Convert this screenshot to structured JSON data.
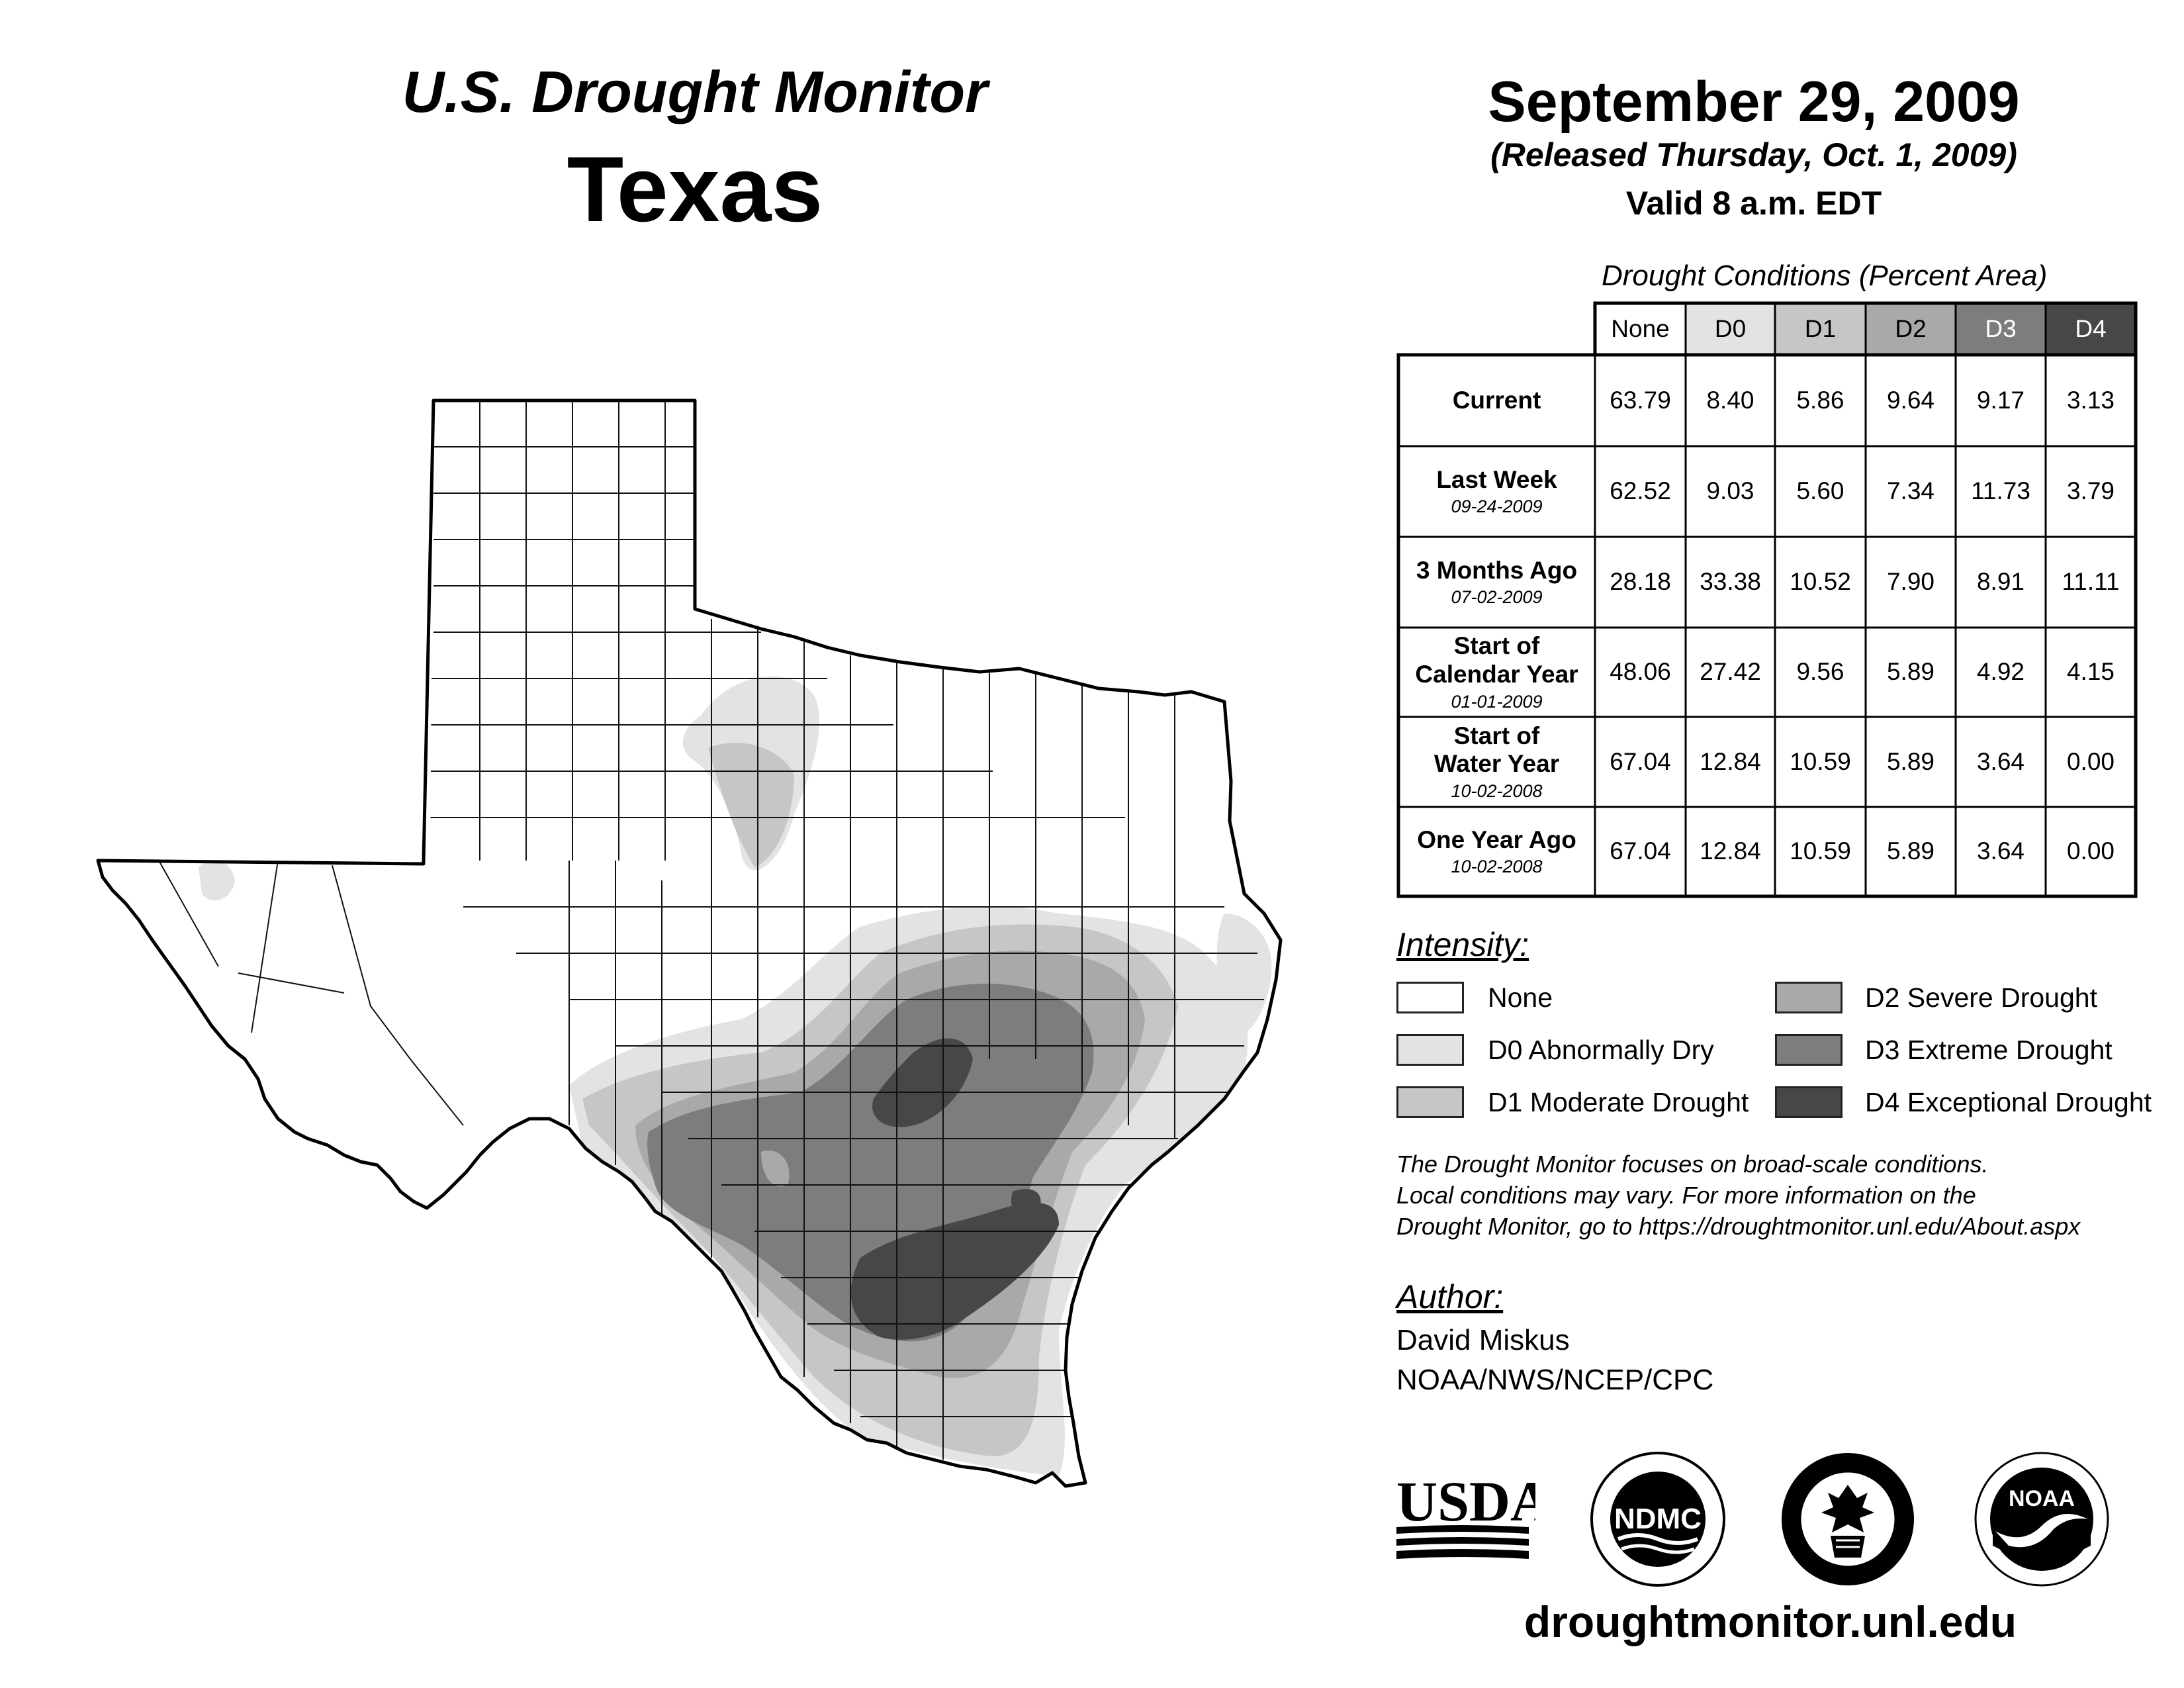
{
  "header": {
    "monitor_title": "U.S. Drought Monitor",
    "state": "Texas",
    "date": "September 29, 2009",
    "released": "(Released Thursday, Oct. 1, 2009)",
    "valid": "Valid 8 a.m. EDT"
  },
  "table": {
    "caption": "Drought Conditions (Percent Area)",
    "columns": [
      "None",
      "D0",
      "D1",
      "D2",
      "D3",
      "D4"
    ],
    "rows": [
      {
        "label": "Current",
        "date": "",
        "values": [
          "63.79",
          "8.40",
          "5.86",
          "9.64",
          "9.17",
          "3.13"
        ]
      },
      {
        "label": "Last Week",
        "date": "09-24-2009",
        "values": [
          "62.52",
          "9.03",
          "5.60",
          "7.34",
          "11.73",
          "3.79"
        ]
      },
      {
        "label": "3 Months Ago",
        "date": "07-02-2009",
        "values": [
          "28.18",
          "33.38",
          "10.52",
          "7.90",
          "8.91",
          "11.11"
        ]
      },
      {
        "label": "Start of Calendar Year",
        "date": "01-01-2009",
        "values": [
          "48.06",
          "27.42",
          "9.56",
          "5.89",
          "4.92",
          "4.15"
        ]
      },
      {
        "label": "Start of Water Year",
        "date": "10-02-2008",
        "values": [
          "67.04",
          "12.84",
          "10.59",
          "5.89",
          "3.64",
          "0.00"
        ]
      },
      {
        "label": "One Year Ago",
        "date": "10-02-2008",
        "values": [
          "67.04",
          "12.84",
          "10.59",
          "5.89",
          "3.64",
          "0.00"
        ]
      }
    ]
  },
  "legend": {
    "title": "Intensity:",
    "items": [
      {
        "label": "None",
        "color": "#ffffff"
      },
      {
        "label": "D0 Abnormally Dry",
        "color": "#e3e3e3"
      },
      {
        "label": "D1 Moderate Drought",
        "color": "#c6c6c6"
      },
      {
        "label": "D2 Severe Drought",
        "color": "#a9a9a9"
      },
      {
        "label": "D3 Extreme Drought",
        "color": "#7d7d7d"
      },
      {
        "label": "D4 Exceptional Drought",
        "color": "#474747"
      }
    ]
  },
  "note": {
    "line1": "The Drought Monitor focuses on broad-scale conditions.",
    "line2": "Local conditions may vary. For more information on the",
    "line3": "Drought Monitor, go to https://droughtmonitor.unl.edu/About.aspx"
  },
  "author": {
    "title": "Author:",
    "name": "David Miskus",
    "org": "NOAA/NWS/NCEP/CPC"
  },
  "logos": {
    "usda": "USDA",
    "ndmc": "NDMC",
    "noaa": "NOAA"
  },
  "website": "droughtmonitor.unl.edu"
}
